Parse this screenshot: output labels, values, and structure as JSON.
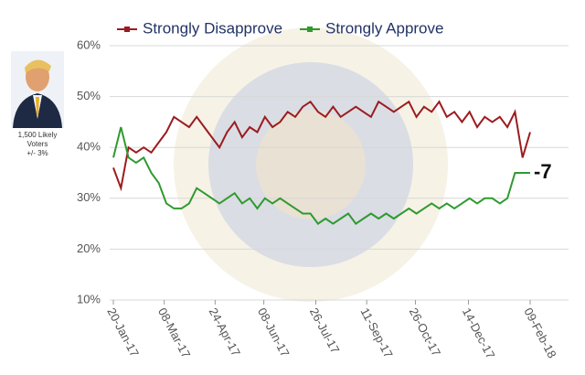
{
  "chart_data": {
    "type": "line",
    "note": [
      "1,500 Likely",
      "Voters",
      "+/- 3%"
    ],
    "annotation": "-7",
    "x": [
      "20-Jan-17",
      "27-Jan-17",
      "03-Feb-17",
      "10-Feb-17",
      "17-Feb-17",
      "24-Feb-17",
      "03-Mar-17",
      "10-Mar-17",
      "17-Mar-17",
      "24-Mar-17",
      "31-Mar-17",
      "07-Apr-17",
      "14-Apr-17",
      "21-Apr-17",
      "28-Apr-17",
      "05-May-17",
      "12-May-17",
      "19-May-17",
      "26-May-17",
      "02-Jun-17",
      "09-Jun-17",
      "16-Jun-17",
      "23-Jun-17",
      "30-Jun-17",
      "07-Jul-17",
      "14-Jul-17",
      "21-Jul-17",
      "28-Jul-17",
      "04-Aug-17",
      "11-Aug-17",
      "18-Aug-17",
      "25-Aug-17",
      "01-Sep-17",
      "08-Sep-17",
      "15-Sep-17",
      "22-Sep-17",
      "29-Sep-17",
      "06-Oct-17",
      "13-Oct-17",
      "20-Oct-17",
      "27-Oct-17",
      "03-Nov-17",
      "10-Nov-17",
      "17-Nov-17",
      "24-Nov-17",
      "01-Dec-17",
      "08-Dec-17",
      "15-Dec-17",
      "22-Dec-17",
      "29-Dec-17",
      "05-Jan-18",
      "12-Jan-18",
      "19-Jan-18",
      "26-Jan-18",
      "02-Feb-18",
      "09-Feb-18"
    ],
    "series": [
      {
        "name": "Strongly Disapprove",
        "color": "#9b1c1f",
        "values": [
          36,
          32,
          40,
          39,
          40,
          39,
          41,
          43,
          46,
          45,
          44,
          46,
          44,
          42,
          40,
          43,
          45,
          42,
          44,
          43,
          46,
          44,
          45,
          47,
          46,
          48,
          49,
          47,
          46,
          48,
          46,
          47,
          48,
          47,
          46,
          49,
          48,
          47,
          48,
          49,
          46,
          48,
          47,
          49,
          46,
          47,
          45,
          47,
          44,
          46,
          45,
          46,
          44,
          47,
          38,
          43
        ]
      },
      {
        "name": "Strongly Approve",
        "color": "#2f9a2f",
        "values": [
          38,
          44,
          38,
          37,
          38,
          35,
          33,
          29,
          28,
          28,
          29,
          32,
          31,
          30,
          29,
          30,
          31,
          29,
          30,
          28,
          30,
          29,
          30,
          29,
          28,
          27,
          27,
          25,
          26,
          25,
          26,
          27,
          25,
          26,
          27,
          26,
          27,
          26,
          27,
          28,
          27,
          28,
          29,
          28,
          29,
          28,
          29,
          30,
          29,
          30,
          30,
          29,
          30,
          35,
          35,
          35
        ]
      }
    ],
    "ylim": [
      10,
      60
    ],
    "yticks": [
      {
        "value": 10,
        "label": "10%"
      },
      {
        "value": 20,
        "label": "20%"
      },
      {
        "value": 30,
        "label": "30%"
      },
      {
        "value": 40,
        "label": "40%"
      },
      {
        "value": 50,
        "label": "50%"
      },
      {
        "value": 60,
        "label": "60%"
      }
    ],
    "xlim": [
      "20-Jan-17",
      "09-Feb-18"
    ],
    "xticks": [
      "20-Jan-17",
      "08-Mar-17",
      "24-Apr-17",
      "08-Jun-17",
      "26-Jul-17",
      "11-Sep-17",
      "26-Oct-17",
      "14-Dec-17",
      "09-Feb-18"
    ],
    "grid": true
  }
}
